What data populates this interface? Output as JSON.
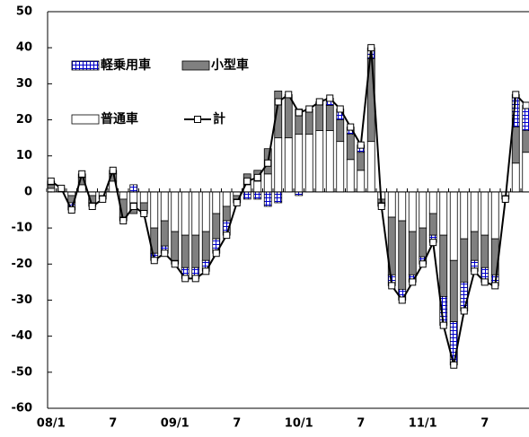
{
  "chart_data": {
    "type": "bar",
    "stacked": true,
    "categories": [
      "08/1",
      null,
      null,
      null,
      null,
      null,
      "7",
      null,
      null,
      null,
      null,
      null,
      "09/1",
      null,
      null,
      null,
      null,
      null,
      "7",
      null,
      null,
      null,
      null,
      null,
      "10/1",
      null,
      null,
      null,
      null,
      null,
      "7",
      null,
      null,
      null,
      null,
      null,
      "11/1",
      null,
      null,
      null,
      null,
      null,
      "7",
      null,
      null,
      null,
      null
    ],
    "series": [
      {
        "name": "普通車",
        "color": "#ffffff",
        "values": [
          1,
          0,
          -1,
          2,
          -1,
          -1,
          3,
          -2,
          -3,
          -3,
          -10,
          -8,
          -11,
          -12,
          -12,
          -11,
          -6,
          -4,
          -1,
          2,
          3,
          5,
          15,
          15,
          16,
          16,
          17,
          17,
          14,
          9,
          6,
          14,
          -2,
          -7,
          -8,
          -11,
          -10,
          -6,
          -12,
          -19,
          -13,
          -11,
          -12,
          -13,
          -1,
          8,
          11
        ]
      },
      {
        "name": "小型車",
        "color": "#808080",
        "values": [
          1,
          1,
          -2,
          2,
          -2,
          -1,
          2,
          -5,
          -3,
          -3,
          -7,
          -7,
          -8,
          -9,
          -9,
          -8,
          -7,
          -4,
          -1,
          3,
          3,
          7,
          13,
          12,
          7,
          7,
          8,
          7,
          6,
          7,
          5,
          23,
          -1,
          -16,
          -19,
          -12,
          -8,
          -6,
          -17,
          -17,
          -12,
          -8,
          -9,
          -10,
          0,
          10,
          6
        ]
      },
      {
        "name": "軽乗用車",
        "color": "#0000cc",
        "pattern": "hatch",
        "values": [
          1,
          0,
          -2,
          1,
          -1,
          0,
          1,
          -1,
          2,
          0,
          -2,
          -2,
          -1,
          -3,
          -3,
          -3,
          -4,
          -4,
          -1,
          -2,
          -2,
          -4,
          -3,
          0,
          -1,
          0,
          0,
          2,
          3,
          2,
          2,
          3,
          -1,
          -3,
          -3,
          -2,
          -2,
          -2,
          -8,
          -12,
          -8,
          -3,
          -4,
          -3,
          -1,
          9,
          7
        ]
      },
      {
        "name": "計",
        "type": "line",
        "color": "#000000",
        "values": [
          3,
          1,
          -5,
          5,
          -4,
          -2,
          6,
          -8,
          -4,
          -6,
          -19,
          -17,
          -20,
          -24,
          -24,
          -22,
          -17,
          -12,
          -3,
          3,
          4,
          8,
          25,
          27,
          22,
          23,
          25,
          26,
          23,
          18,
          13,
          40,
          -4,
          -26,
          -30,
          -25,
          -20,
          -14,
          -37,
          -48,
          -33,
          -22,
          -25,
          -26,
          -2,
          27,
          24
        ]
      }
    ],
    "ylim": [
      -60,
      50
    ],
    "yticks": [
      50,
      40,
      30,
      20,
      10,
      0,
      -10,
      -20,
      -30,
      -40,
      -50,
      -60
    ]
  }
}
